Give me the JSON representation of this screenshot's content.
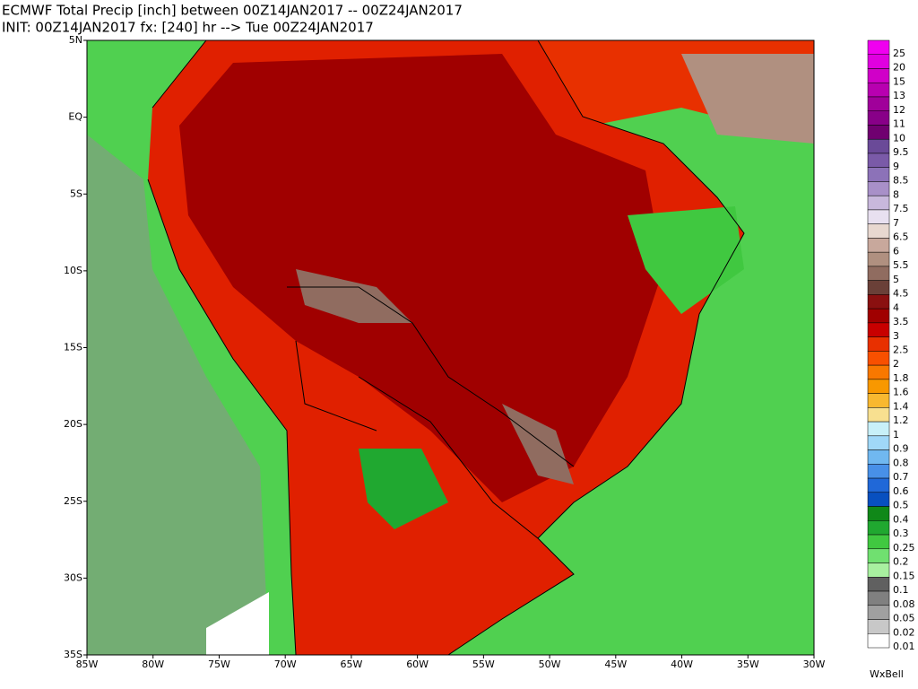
{
  "header": {
    "line1": "ECMWF Total Precip [inch] between 00Z14JAN2017 -- 00Z24JAN2017",
    "line2": "INIT: 00Z14JAN2017 fx: [240] hr --> Tue 00Z24JAN2017"
  },
  "map": {
    "lat_labels": [
      "5N",
      "EQ",
      "5S",
      "10S",
      "15S",
      "20S",
      "25S",
      "30S",
      "35S"
    ],
    "lon_labels": [
      "85W",
      "80W",
      "75W",
      "70W",
      "65W",
      "60W",
      "55W",
      "50W",
      "45W",
      "40W",
      "35W",
      "30W"
    ]
  },
  "colorbar": [
    {
      "label": "25",
      "color": "#f000f0"
    },
    {
      "label": "20",
      "color": "#e000e0"
    },
    {
      "label": "15",
      "color": "#d000c8"
    },
    {
      "label": "13",
      "color": "#b800b0"
    },
    {
      "label": "12",
      "color": "#a0009a"
    },
    {
      "label": "11",
      "color": "#880088"
    },
    {
      "label": "10",
      "color": "#700070"
    },
    {
      "label": "9.5",
      "color": "#6a4a98"
    },
    {
      "label": "9",
      "color": "#7a5aa8"
    },
    {
      "label": "8.5",
      "color": "#8c72b8"
    },
    {
      "label": "8",
      "color": "#a890c8"
    },
    {
      "label": "7.5",
      "color": "#c8b8dc"
    },
    {
      "label": "7",
      "color": "#e8e0f0"
    },
    {
      "label": "6.5",
      "color": "#e8d8d0"
    },
    {
      "label": "6",
      "color": "#c8a89c"
    },
    {
      "label": "5.5",
      "color": "#b09080"
    },
    {
      "label": "5",
      "color": "#906c60"
    },
    {
      "label": "4.5",
      "color": "#6a4038"
    },
    {
      "label": "4",
      "color": "#8a1010"
    },
    {
      "label": "3.5",
      "color": "#a00000"
    },
    {
      "label": "3",
      "color": "#c80000"
    },
    {
      "label": "2.5",
      "color": "#e83000"
    },
    {
      "label": "2",
      "color": "#f85000"
    },
    {
      "label": "1.8",
      "color": "#f87800"
    },
    {
      "label": "1.6",
      "color": "#f89800"
    },
    {
      "label": "1.4",
      "color": "#f8b830"
    },
    {
      "label": "1.2",
      "color": "#f8e090"
    },
    {
      "label": "1",
      "color": "#c8f0f8"
    },
    {
      "label": "0.9",
      "color": "#a0d8f8"
    },
    {
      "label": "0.8",
      "color": "#70b8f0"
    },
    {
      "label": "0.7",
      "color": "#4890e8"
    },
    {
      "label": "0.6",
      "color": "#2068d8"
    },
    {
      "label": "0.5",
      "color": "#0850c0"
    },
    {
      "label": "0.4",
      "color": "#108818"
    },
    {
      "label": "0.3",
      "color": "#20a830"
    },
    {
      "label": "0.25",
      "color": "#40c840"
    },
    {
      "label": "0.2",
      "color": "#70e070"
    },
    {
      "label": "0.15",
      "color": "#a8f0a0"
    },
    {
      "label": "0.1",
      "color": "#606060"
    },
    {
      "label": "0.08",
      "color": "#808080"
    },
    {
      "label": "0.05",
      "color": "#a0a0a0"
    },
    {
      "label": "0.02",
      "color": "#c8c8c8"
    },
    {
      "label": "0.01",
      "color": "#ffffff"
    }
  ],
  "logo": "WxBell"
}
